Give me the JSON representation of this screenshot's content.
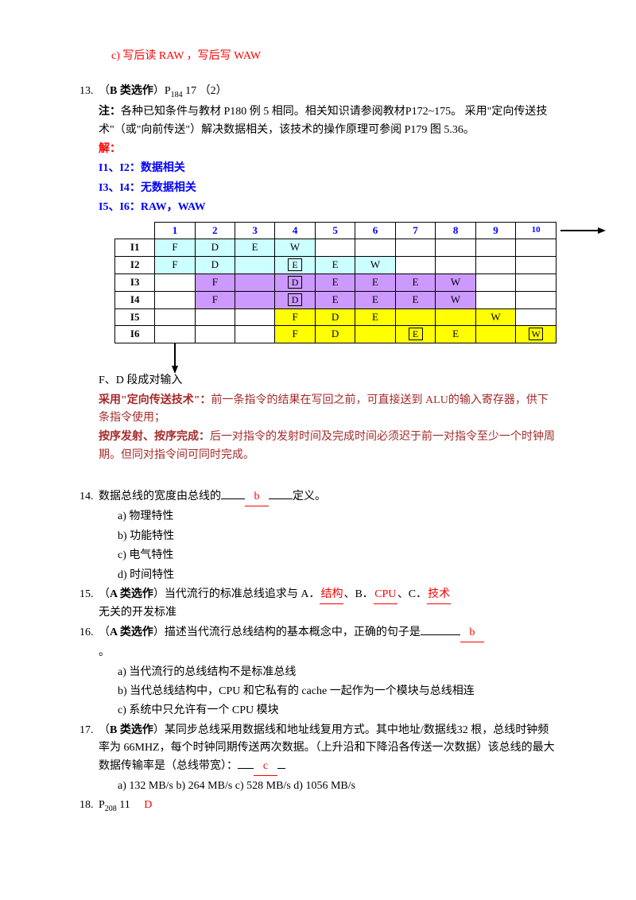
{
  "item_c": "c)  写后读 RAW ，写后写 WAW",
  "q13": {
    "num": "13.",
    "title_prefix": "（",
    "title_bold": "B 类选作",
    "title_after": "）P",
    "title_sub": "184",
    "title_end": " 17 （2）",
    "note_label": "注：",
    "note_text": "各种已知条件与教材 P180 例 5 相同。相关知识请参阅教材P172~175。 采用\"定向传送技术\"（或\"向前传送\"）解决数据相关，该技术的操作原理可参阅 P179 图 5.36。",
    "sol_label": "解：",
    "sol_l1": "I1、I2：数据相关",
    "sol_l2": "I3、I4：无数据相关",
    "sol_l3": "I5、I6：RAW，WAW",
    "table": {
      "headers": [
        "1",
        "2",
        "3",
        "4",
        "5",
        "6",
        "7",
        "8",
        "9",
        "10"
      ],
      "rows": [
        {
          "label": "I1",
          "cells": [
            {
              "t": "F",
              "c": "cyan"
            },
            {
              "t": "D",
              "c": "cyan"
            },
            {
              "t": "E",
              "c": "cyan"
            },
            {
              "t": "W",
              "c": "cyan"
            },
            {
              "t": ""
            },
            {
              "t": ""
            },
            {
              "t": ""
            },
            {
              "t": ""
            },
            {
              "t": ""
            },
            {
              "t": ""
            }
          ]
        },
        {
          "label": "I2",
          "cells": [
            {
              "t": "F",
              "c": "cyan"
            },
            {
              "t": "D",
              "c": "cyan"
            },
            {
              "t": "",
              "c": "cyan"
            },
            {
              "t": "E",
              "c": "cyan",
              "boxed": true
            },
            {
              "t": "E",
              "c": "cyan"
            },
            {
              "t": "W",
              "c": "cyan"
            },
            {
              "t": ""
            },
            {
              "t": ""
            },
            {
              "t": ""
            },
            {
              "t": ""
            }
          ]
        },
        {
          "label": "I3",
          "cells": [
            {
              "t": ""
            },
            {
              "t": "F",
              "c": "purple"
            },
            {
              "t": "",
              "c": "purple"
            },
            {
              "t": "D",
              "c": "purple",
              "boxed": true
            },
            {
              "t": "E",
              "c": "purple"
            },
            {
              "t": "E",
              "c": "purple"
            },
            {
              "t": "E",
              "c": "purple"
            },
            {
              "t": "W",
              "c": "purple"
            },
            {
              "t": ""
            },
            {
              "t": ""
            }
          ]
        },
        {
          "label": "I4",
          "cells": [
            {
              "t": ""
            },
            {
              "t": "F",
              "c": "purple"
            },
            {
              "t": "",
              "c": "purple"
            },
            {
              "t": "D",
              "c": "purple",
              "boxed": true
            },
            {
              "t": "E",
              "c": "purple"
            },
            {
              "t": "E",
              "c": "purple"
            },
            {
              "t": "E",
              "c": "purple"
            },
            {
              "t": "W",
              "c": "purple"
            },
            {
              "t": ""
            },
            {
              "t": ""
            }
          ]
        },
        {
          "label": "I5",
          "cells": [
            {
              "t": ""
            },
            {
              "t": ""
            },
            {
              "t": ""
            },
            {
              "t": "F",
              "c": "yellow"
            },
            {
              "t": "D",
              "c": "yellow"
            },
            {
              "t": "E",
              "c": "yellow"
            },
            {
              "t": "",
              "c": "yellow"
            },
            {
              "t": "",
              "c": "yellow"
            },
            {
              "t": "W",
              "c": "yellow"
            },
            {
              "t": ""
            }
          ]
        },
        {
          "label": "I6",
          "cells": [
            {
              "t": ""
            },
            {
              "t": ""
            },
            {
              "t": ""
            },
            {
              "t": "F",
              "c": "yellow"
            },
            {
              "t": "D",
              "c": "yellow"
            },
            {
              "t": "",
              "c": "yellow"
            },
            {
              "t": "E",
              "c": "yellow",
              "boxed": true
            },
            {
              "t": "E",
              "c": "yellow"
            },
            {
              "t": "",
              "c": "yellow"
            },
            {
              "t": "W",
              "c": "yellow",
              "boxed": true
            }
          ]
        }
      ]
    },
    "after_line1": "F、D 段成对输入",
    "after_l2_bold": "采用\"定向传送技术\"：",
    "after_l2_text": "前一条指令的结果在写回之前，可直接送到 ALU的输入寄存器，供下条指令使用；",
    "after_l3_bold": "按序发射、按序完成：",
    "after_l3_text": "后一对指令的发射时间及完成时间必须迟于前一对指令至少一个时钟周期。但同对指令间可同时完成。"
  },
  "q14": {
    "num": "14.",
    "text_before": "数据总线的宽度由总线的",
    "answer": " b ",
    "text_after": "定义。",
    "opts": [
      "a)   物理特性",
      "b)   功能特性",
      "c)   电气特性",
      "d)   时间特性"
    ]
  },
  "q15": {
    "num": "15.",
    "prefix": "（",
    "bold": "A 类选作",
    "text1": "）当代流行的标准总线追求与 A．",
    "a1": "结构",
    "text2": "、B．",
    "a2": "CPU ",
    "text3": "、C．",
    "a3": "技术",
    "text4": "无关的开发标准"
  },
  "q16": {
    "num": "16.",
    "prefix": "（",
    "bold": "A 类选作",
    "text": "）描述当代流行总线结构的基本概念中，正确的句子是",
    "answer": "b",
    "end": "。",
    "opts": [
      "a)   当代流行的总线结构不是标准总线",
      "b)   当代总线结构中，CPU 和它私有的 cache 一起作为一个模块与总线相连",
      "c)   系统中只允许有一个 CPU 模块"
    ]
  },
  "q17": {
    "num": "17.",
    "prefix": "（",
    "bold": "B 类选作",
    "text": "）某同步总线采用数据线和地址线复用方式。其中地址/数据线32 根，总线时钟频率为 66MHZ，每个时钟同期传送两次数据。（上升沿和下降沿各传送一次数据）该总线的最大数据传输率是（总线带宽）：",
    "answer": "c",
    "opts_line": "a)   132 MB/s      b) 264 MB/s       c) 528 MB/s      d) 1056 MB/s"
  },
  "q18": {
    "num": "18.",
    "p": "P",
    "sub": "208",
    "n": " 11     ",
    "answer": "D"
  }
}
